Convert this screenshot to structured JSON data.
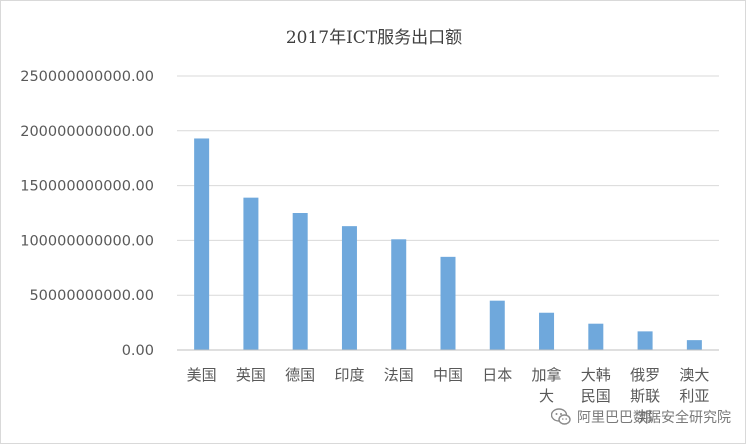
{
  "chart_data": {
    "type": "bar",
    "title": "2017年ICT服务出口额",
    "xlabel": "",
    "ylabel": "",
    "categories": [
      "美国",
      "英国",
      "德国",
      "印度",
      "法国",
      "中国",
      "日本",
      "加拿大",
      "大韩民国",
      "俄罗斯联邦",
      "澳大利亚"
    ],
    "values": [
      193000000000,
      139000000000,
      125000000000,
      113000000000,
      101000000000,
      85000000000,
      45000000000,
      34000000000,
      24000000000,
      17000000000,
      9000000000
    ],
    "ylim": [
      0,
      250000000000
    ],
    "yticks": [
      0,
      50000000000,
      100000000000,
      150000000000,
      200000000000,
      250000000000
    ],
    "ytick_labels": [
      "0.00",
      "50000000000.00",
      "100000000000.00",
      "150000000000.00",
      "200000000000.00",
      "250000000000.00"
    ],
    "grid": true,
    "bar_color": "#6fa8dc"
  },
  "watermark": {
    "text": "阿里巴巴数据安全研究院",
    "icon": "wechat-icon"
  }
}
